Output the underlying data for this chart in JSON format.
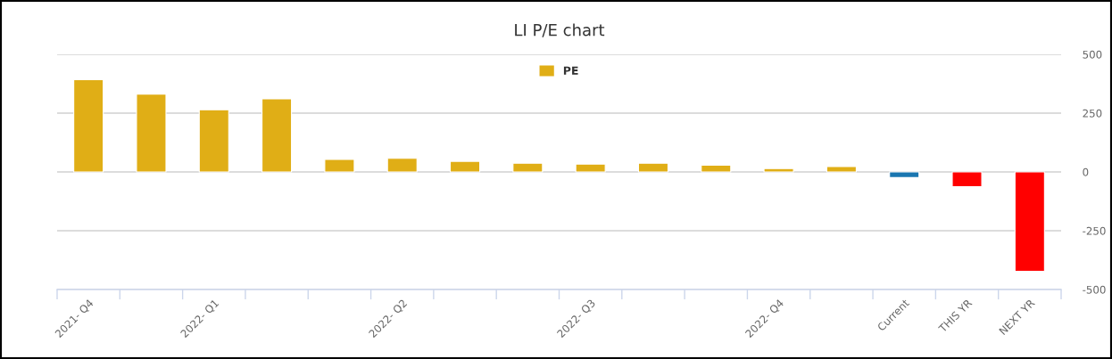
{
  "chart_data": {
    "type": "bar",
    "title": "LI P/E chart",
    "categories": [
      "2021- Q4",
      null,
      "2022- Q1",
      null,
      null,
      "2022- Q2",
      null,
      null,
      "2022- Q3",
      null,
      null,
      "2022- Q4",
      null,
      "Current",
      "THIS YR",
      "NEXT YR"
    ],
    "series": [
      {
        "name": "PE",
        "color": "#e0ae16",
        "colors": [
          "#e0ae16",
          "#e0ae16",
          "#e0ae16",
          "#e0ae16",
          "#e0ae16",
          "#e0ae16",
          "#e0ae16",
          "#e0ae16",
          "#e0ae16",
          "#e0ae16",
          "#e0ae16",
          "#e0ae16",
          "#e0ae16",
          "#1a76b0",
          "#ff0000",
          "#ff0000"
        ],
        "values": [
          392,
          331,
          264,
          311,
          53,
          58,
          45,
          37,
          33,
          37,
          29,
          14,
          23,
          -24,
          -63,
          -423
        ]
      }
    ],
    "ylim": [
      -500,
      500
    ],
    "yticks": [
      500,
      250,
      0,
      -250,
      -500
    ],
    "grid": "y",
    "legend": "top"
  }
}
